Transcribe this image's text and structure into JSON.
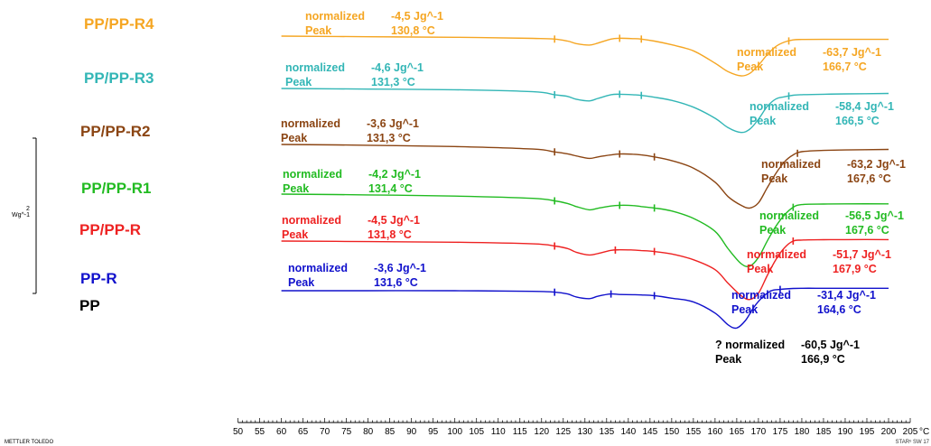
{
  "chart_data": {
    "type": "line",
    "xlabel": "",
    "ylabel": "",
    "x_ticks": [
      "50",
      "55",
      "60",
      "65",
      "70",
      "75",
      "80",
      "85",
      "90",
      "95",
      "100",
      "105",
      "110",
      "115",
      "120",
      "125",
      "130",
      "135",
      "140",
      "145",
      "150",
      "155",
      "160",
      "165",
      "170",
      "175",
      "180",
      "185",
      "190",
      "195",
      "200",
      "205"
    ],
    "xlim": [
      50,
      205
    ],
    "x_unit": "°C",
    "scale_bar": {
      "label": "Wg^-1",
      "value": "2"
    },
    "footer_left": "METTLER TOLEDO",
    "footer_right": "STARᵉ SW 17",
    "series": [
      {
        "name": "PP/PP-R4",
        "color": "#F5A623",
        "peaks": [
          {
            "normalized_label": "normalized",
            "normalized_value": "-4,5 Jg^-1",
            "peak_label": "Peak",
            "peak_value": "130,8 °C"
          },
          {
            "normalized_label": "normalized",
            "normalized_value": "-63,7 Jg^-1",
            "peak_label": "Peak",
            "peak_value": "166,7 °C"
          }
        ],
        "x": [
          60,
          80,
          100,
          118,
          123,
          126,
          128,
          131,
          133,
          136,
          138,
          141,
          143,
          146,
          150,
          155,
          160,
          163,
          166,
          168,
          170,
          172,
          174,
          176,
          178,
          180,
          185,
          190,
          200
        ],
        "y": [
          0,
          0.6,
          1.2,
          2.3,
          3,
          5,
          7.5,
          9,
          7,
          3,
          2.2,
          2.5,
          3,
          5,
          8.7,
          14.8,
          27.3,
          35.8,
          40,
          37.5,
          29.4,
          18.8,
          10.5,
          6,
          3.8,
          3.4,
          3.3,
          3.3,
          3.3
        ]
      },
      {
        "name": "PP/PP-R3",
        "color": "#33B6B6",
        "peaks": [
          {
            "normalized_label": "normalized",
            "normalized_value": "-4,6 Jg^-1",
            "peak_label": "Peak",
            "peak_value": "131,3 °C"
          },
          {
            "normalized_label": "normalized",
            "normalized_value": "-58,4 Jg^-1",
            "peak_label": "Peak",
            "peak_value": "166,5 °C"
          }
        ],
        "x": [
          60,
          80,
          100,
          118,
          123,
          126,
          128,
          131,
          133,
          136,
          138,
          141,
          143,
          146,
          150,
          155,
          160,
          163,
          166,
          168,
          170,
          172,
          174,
          176,
          178,
          180,
          185,
          190,
          200
        ],
        "y": [
          0,
          0.6,
          1.3,
          3.3,
          6.3,
          8,
          10.8,
          12.5,
          10,
          6.3,
          5.8,
          6.3,
          7,
          8.8,
          12,
          18.8,
          30,
          39.5,
          44.3,
          41,
          31,
          18.3,
          10.6,
          8.4,
          6.8,
          6.3,
          5.8,
          5.5,
          5
        ]
      },
      {
        "name": "PP/PP-R2",
        "color": "#8B4513",
        "peaks": [
          {
            "normalized_label": "normalized",
            "normalized_value": "-3,6 Jg^-1",
            "peak_label": "Peak",
            "peak_value": "131,3 °C"
          },
          {
            "normalized_label": "normalized",
            "normalized_value": "-63,2 Jg^-1",
            "peak_label": "Peak",
            "peak_value": "167,6 °C"
          }
        ],
        "x": [
          60,
          80,
          100,
          118,
          123,
          126,
          128,
          131,
          133,
          136,
          138,
          141,
          143,
          146,
          150,
          155,
          160,
          163,
          166,
          168,
          170,
          172,
          174,
          176,
          178,
          180,
          185,
          190,
          200
        ],
        "y": [
          0,
          0.8,
          2.1,
          4.6,
          7.5,
          9.5,
          11.5,
          14,
          12.5,
          10.5,
          9.6,
          9.8,
          10.5,
          12.5,
          16.3,
          23.8,
          38,
          52.5,
          61.3,
          64,
          58.8,
          43.8,
          29.3,
          17.5,
          10.5,
          7.3,
          6,
          5.5,
          5
        ]
      },
      {
        "name": "PP/PP-R1",
        "color": "#22BB22",
        "peaks": [
          {
            "normalized_label": "normalized",
            "normalized_value": "-4,2 Jg^-1",
            "peak_label": "Peak",
            "peak_value": "131,4 °C"
          },
          {
            "normalized_label": "normalized",
            "normalized_value": "-56,5 Jg^-1",
            "peak_label": "Peak",
            "peak_value": "167,6 °C"
          }
        ],
        "x": [
          60,
          80,
          100,
          118,
          123,
          126,
          128,
          131,
          133,
          136,
          138,
          141,
          143,
          146,
          150,
          155,
          160,
          163,
          166,
          168,
          170,
          172,
          174,
          176,
          178,
          180,
          185,
          190,
          200
        ],
        "y": [
          0,
          0.8,
          2,
          4.3,
          6.8,
          9.5,
          12.5,
          15.8,
          14.3,
          12,
          11.3,
          11.5,
          12.5,
          14,
          17,
          24.5,
          37.5,
          55,
          70,
          72.5,
          63.8,
          47.5,
          32.5,
          21,
          13.3,
          10.5,
          10,
          9.8,
          9.8
        ]
      },
      {
        "name": "PP/PP-R",
        "color": "#EE2222",
        "peaks": [
          {
            "normalized_label": "normalized",
            "normalized_value": "-4,5 Jg^-1",
            "peak_label": "Peak",
            "peak_value": "131,8 °C"
          },
          {
            "normalized_label": "normalized",
            "normalized_value": "-51,7 Jg^-1",
            "peak_label": "Peak",
            "peak_value": "167,9 °C"
          }
        ],
        "x": [
          60,
          80,
          100,
          118,
          123,
          126,
          128,
          131,
          133,
          136,
          138,
          141,
          143,
          146,
          150,
          155,
          160,
          163,
          166,
          168,
          170,
          172,
          174,
          176,
          178,
          180,
          185,
          190,
          200
        ],
        "y": [
          0,
          0.5,
          1.2,
          2.8,
          5,
          7.5,
          11.3,
          14,
          12.5,
          9.4,
          8.8,
          9,
          9.6,
          10.5,
          13,
          18.8,
          28.8,
          42.5,
          55,
          58.8,
          52.5,
          35,
          18.8,
          6.8,
          0,
          -1,
          -1.4,
          -1.5,
          -1.5
        ]
      },
      {
        "name": "PP-R",
        "color": "#1111CC",
        "peaks": [
          {
            "normalized_label": "normalized",
            "normalized_value": "-3,6 Jg^-1",
            "peak_label": "Peak",
            "peak_value": "131,6 °C"
          },
          {
            "normalized_label": "normalized",
            "normalized_value": "-31,4 Jg^-1",
            "peak_label": "Peak",
            "peak_value": "164,6 °C"
          }
        ],
        "x": [
          60,
          80,
          100,
          118,
          123,
          126,
          128,
          131,
          133,
          136,
          138,
          141,
          143,
          146,
          150,
          155,
          160,
          163,
          165,
          167,
          169,
          171,
          173,
          175,
          178,
          180,
          185,
          190,
          200
        ],
        "y": [
          0,
          0,
          0,
          0.6,
          1.5,
          3.3,
          6.3,
          8,
          5.5,
          3.3,
          3.8,
          4,
          4.3,
          5,
          7.5,
          11.3,
          22.5,
          34.4,
          37.5,
          30,
          16.3,
          6.3,
          0,
          -1.3,
          -2.3,
          -2.5,
          -2.5,
          -2.5,
          -2.5
        ]
      },
      {
        "name": "PP",
        "color": "#000000",
        "peaks": [
          {
            "normalized_label": "? normalized",
            "normalized_value": "-60,5 Jg^-1",
            "peak_label": "Peak",
            "peak_value": "166,9 °C"
          }
        ],
        "x": [],
        "y": []
      }
    ]
  }
}
